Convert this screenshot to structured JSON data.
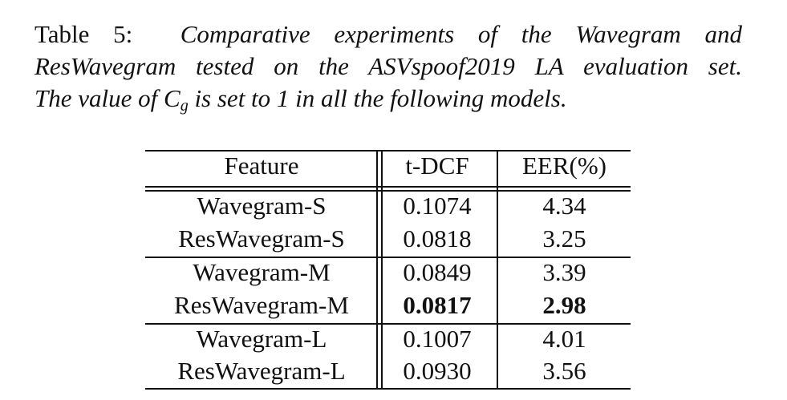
{
  "caption": {
    "label": "Table 5:",
    "line1_rest": "Comparative experiments of the Wavegram and",
    "line2": "ResWavegram tested on the ASVspoof2019 LA evaluation set.",
    "line3_pre": "The value of ",
    "symbol_main": "C",
    "symbol_sub": "g",
    "line3_post": " is set to 1 in all the following models."
  },
  "table": {
    "headers": [
      "Feature",
      "t-DCF",
      "EER(%)"
    ],
    "rows": [
      {
        "feature": "Wavegram-S",
        "tdcf": "0.1074",
        "eer": "4.34"
      },
      {
        "feature": "ResWavegram-S",
        "tdcf": "0.0818",
        "eer": "3.25"
      },
      {
        "feature": "Wavegram-M",
        "tdcf": "0.0849",
        "eer": "3.39"
      },
      {
        "feature": "ResWavegram-M",
        "tdcf": "0.0817",
        "eer": "2.98"
      },
      {
        "feature": "Wavegram-L",
        "tdcf": "0.1007",
        "eer": "4.01"
      },
      {
        "feature": "ResWavegram-L",
        "tdcf": "0.0930",
        "eer": "3.56"
      }
    ]
  }
}
